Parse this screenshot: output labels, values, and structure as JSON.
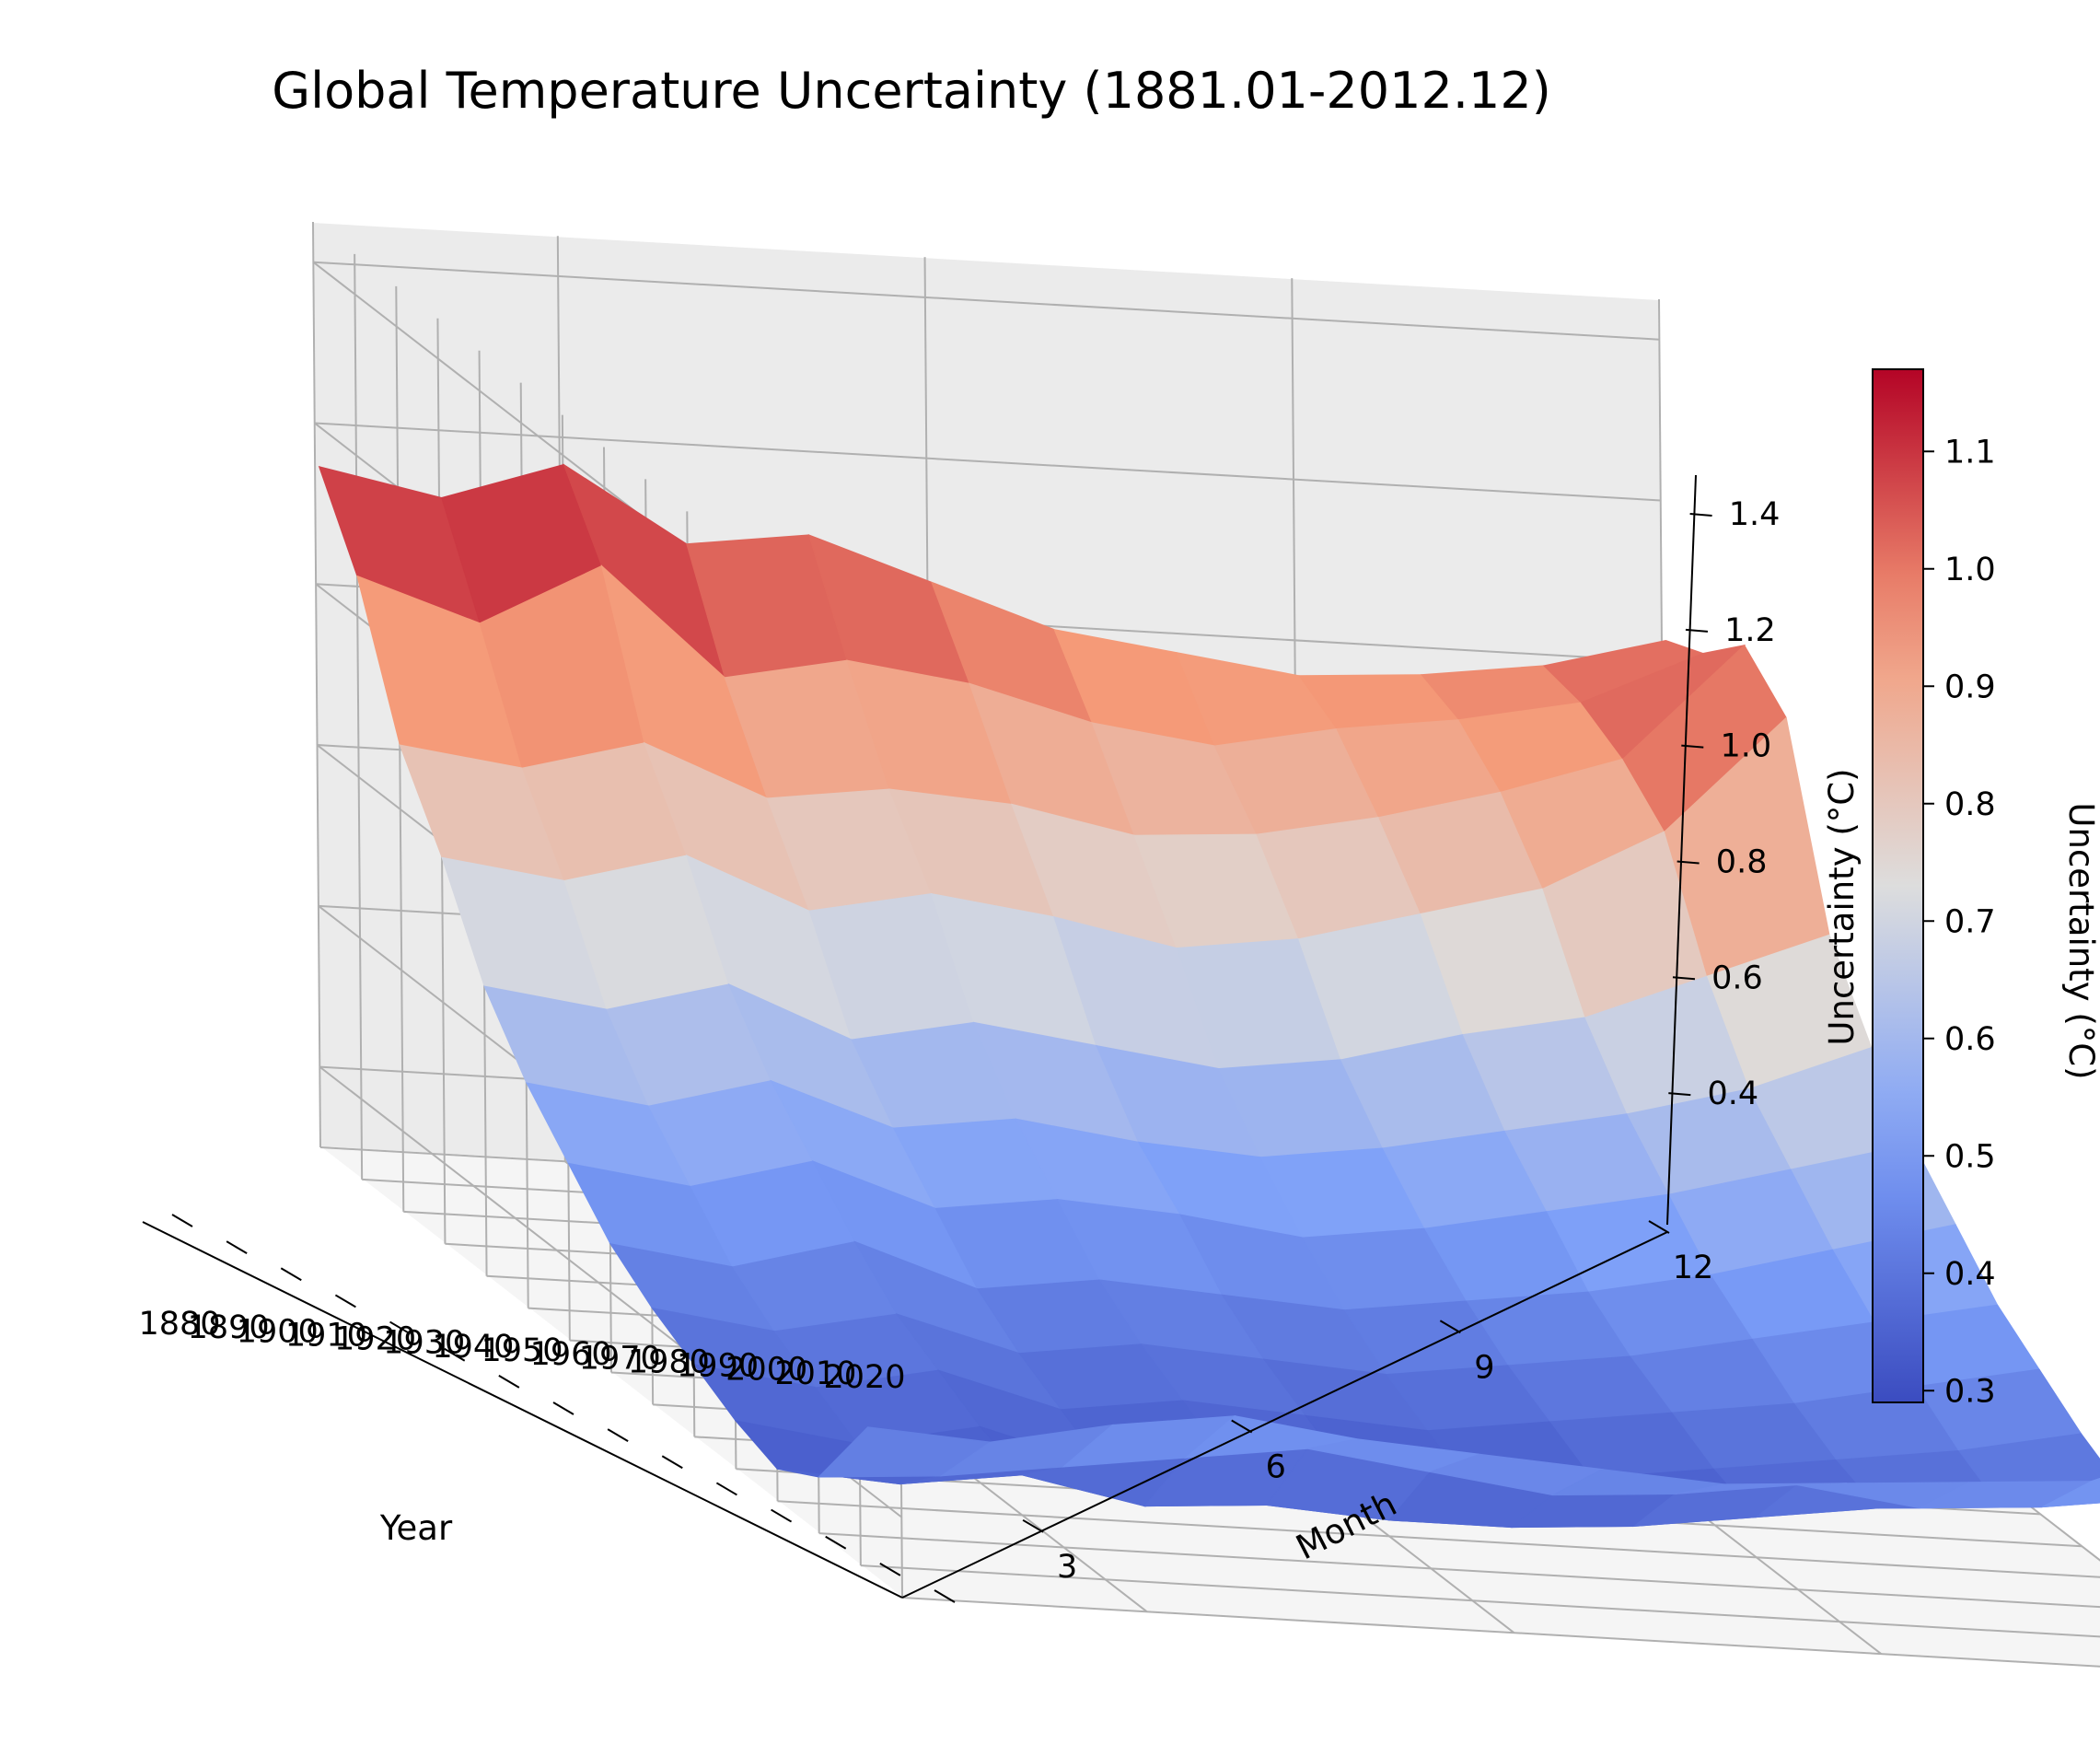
{
  "chart_data": {
    "type": "surface3d",
    "title": "Global Temperature Uncertainty (1881.01-2012.12)",
    "xlabel": "Year",
    "ylabel": "Month",
    "zlabel": "Uncertainty (°C)",
    "x_ticks": [
      "1880",
      "1890",
      "1900",
      "1910",
      "1920",
      "1930",
      "1940",
      "1950",
      "1960",
      "1970",
      "1980",
      "1990",
      "2000",
      "2010",
      "2020"
    ],
    "y_ticks": [
      "3",
      "6",
      "9",
      "12"
    ],
    "z_ticks": [
      "0.4",
      "0.6",
      "0.8",
      "1.0",
      "1.2",
      "1.4"
    ],
    "xlim": [
      1880,
      2020
    ],
    "ylim": [
      1,
      12
    ],
    "zlim": [
      0.3,
      1.45
    ],
    "colormap": "coolwarm",
    "colorbar": {
      "label": "Uncertainty (°C)",
      "ticks": [
        "0.3",
        "0.4",
        "0.5",
        "0.6",
        "0.7",
        "0.8",
        "0.9",
        "1.0",
        "1.1"
      ],
      "range": [
        0.29,
        1.17
      ]
    },
    "years": [
      1881,
      1890,
      1900,
      1910,
      1920,
      1930,
      1940,
      1950,
      1960,
      1970,
      1980,
      1990,
      2000,
      2012
    ],
    "months": [
      1,
      2,
      3,
      4,
      5,
      6,
      7,
      8,
      9,
      10,
      11,
      12
    ],
    "series": [
      {
        "year": 1881,
        "values": [
          1.15,
          1.12,
          1.17,
          1.08,
          1.1,
          1.05,
          1.0,
          0.98,
          0.96,
          0.97,
          0.99,
          1.03
        ]
      },
      {
        "year": 1890,
        "values": [
          1.05,
          1.0,
          1.08,
          0.95,
          0.98,
          0.96,
          0.92,
          0.9,
          0.93,
          0.95,
          0.98,
          1.05
        ]
      },
      {
        "year": 1900,
        "values": [
          0.88,
          0.86,
          0.9,
          0.84,
          0.86,
          0.85,
          0.82,
          0.83,
          0.86,
          0.9,
          0.95,
          1.1
        ]
      },
      {
        "year": 1910,
        "values": [
          0.78,
          0.76,
          0.8,
          0.74,
          0.77,
          0.75,
          0.72,
          0.74,
          0.78,
          0.82,
          0.9,
          1.05
        ]
      },
      {
        "year": 1920,
        "values": [
          0.66,
          0.64,
          0.68,
          0.62,
          0.65,
          0.63,
          0.61,
          0.63,
          0.67,
          0.7,
          0.76,
          0.82
        ]
      },
      {
        "year": 1930,
        "values": [
          0.58,
          0.56,
          0.6,
          0.55,
          0.57,
          0.55,
          0.54,
          0.56,
          0.59,
          0.62,
          0.66,
          0.72
        ]
      },
      {
        "year": 1940,
        "values": [
          0.52,
          0.5,
          0.54,
          0.49,
          0.51,
          0.5,
          0.48,
          0.5,
          0.53,
          0.56,
          0.6,
          0.64
        ]
      },
      {
        "year": 1950,
        "values": [
          0.46,
          0.44,
          0.48,
          0.43,
          0.45,
          0.44,
          0.43,
          0.45,
          0.47,
          0.5,
          0.54,
          0.58
        ]
      },
      {
        "year": 1960,
        "values": [
          0.42,
          0.4,
          0.43,
          0.39,
          0.41,
          0.4,
          0.39,
          0.41,
          0.43,
          0.46,
          0.49,
          0.52
        ]
      },
      {
        "year": 1970,
        "values": [
          0.39,
          0.37,
          0.4,
          0.36,
          0.38,
          0.37,
          0.36,
          0.38,
          0.4,
          0.42,
          0.45,
          0.48
        ]
      },
      {
        "year": 1980,
        "values": [
          0.36,
          0.34,
          0.37,
          0.33,
          0.35,
          0.34,
          0.33,
          0.35,
          0.37,
          0.39,
          0.41,
          0.44
        ]
      },
      {
        "year": 1990,
        "values": [
          0.34,
          0.33,
          0.35,
          0.32,
          0.33,
          0.32,
          0.32,
          0.33,
          0.35,
          0.37,
          0.38,
          0.41
        ]
      },
      {
        "year": 2000,
        "values": [
          0.37,
          0.38,
          0.4,
          0.42,
          0.44,
          0.42,
          0.4,
          0.41,
          0.43,
          0.41,
          0.42,
          0.44
        ]
      },
      {
        "year": 2012,
        "values": [
          0.48,
          0.47,
          0.5,
          0.52,
          0.5,
          0.49,
          0.48,
          0.47,
          0.48,
          0.49,
          0.5,
          0.56
        ]
      }
    ]
  }
}
